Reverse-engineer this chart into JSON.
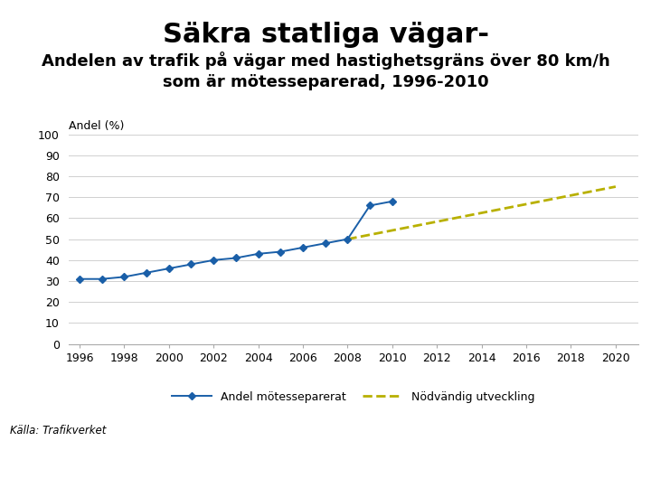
{
  "title": "Säkra statliga vägar-",
  "subtitle": "Andelen av trafik på vägar med hastighetsgräns över 80 km/h\nsom är mötesseparerad, 1996-2010",
  "ylabel_label": "Andel (%)",
  "background_color": "#ffffff",
  "solid_line": {
    "label": "Andel mötesseparerat",
    "color": "#1a5fa8",
    "marker": "D",
    "markersize": 4,
    "x": [
      1996,
      1997,
      1998,
      1999,
      2000,
      2001,
      2002,
      2003,
      2004,
      2005,
      2006,
      2007,
      2008,
      2009,
      2010
    ],
    "y": [
      31,
      31,
      32,
      34,
      36,
      38,
      40,
      41,
      43,
      44,
      46,
      48,
      50,
      66,
      68
    ]
  },
  "dashed_line": {
    "label": "Nödvändig utveckling",
    "color": "#b8b000",
    "linestyle": "--",
    "x": [
      2008,
      2020
    ],
    "y": [
      50,
      75
    ]
  },
  "xlim": [
    1995.5,
    2021
  ],
  "ylim": [
    0,
    100
  ],
  "xticks": [
    1996,
    1998,
    2000,
    2002,
    2004,
    2006,
    2008,
    2010,
    2012,
    2014,
    2016,
    2018,
    2020
  ],
  "yticks": [
    0,
    10,
    20,
    30,
    40,
    50,
    60,
    70,
    80,
    90,
    100
  ],
  "grid_color": "#d0d0d0",
  "source_text": "Källa: Trafikverket",
  "footer_color": "#c0272d",
  "title_fontsize": 22,
  "subtitle_fontsize": 13,
  "tick_fontsize": 9,
  "legend_fontsize": 9,
  "ylabel_fontsize": 9
}
